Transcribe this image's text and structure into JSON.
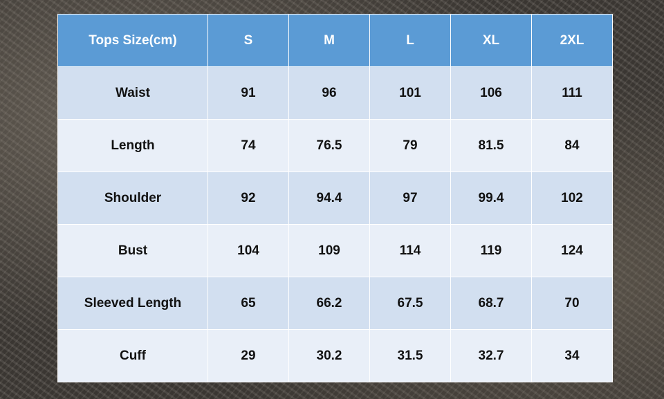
{
  "table": {
    "header": [
      "Tops Size(cm)",
      "S",
      "M",
      "L",
      "XL",
      "2XL"
    ],
    "rows": [
      [
        "Waist",
        91,
        96,
        101,
        106,
        111
      ],
      [
        "Length",
        74,
        76.5,
        79,
        81.5,
        84
      ],
      [
        "Shoulder",
        92,
        94.4,
        97,
        99.4,
        102
      ],
      [
        "Bust",
        104,
        109,
        114,
        119,
        124
      ],
      [
        "Sleeved Length",
        65,
        66.2,
        67.5,
        68.7,
        70
      ],
      [
        "Cuff",
        29,
        30.2,
        31.5,
        32.7,
        34
      ]
    ]
  }
}
